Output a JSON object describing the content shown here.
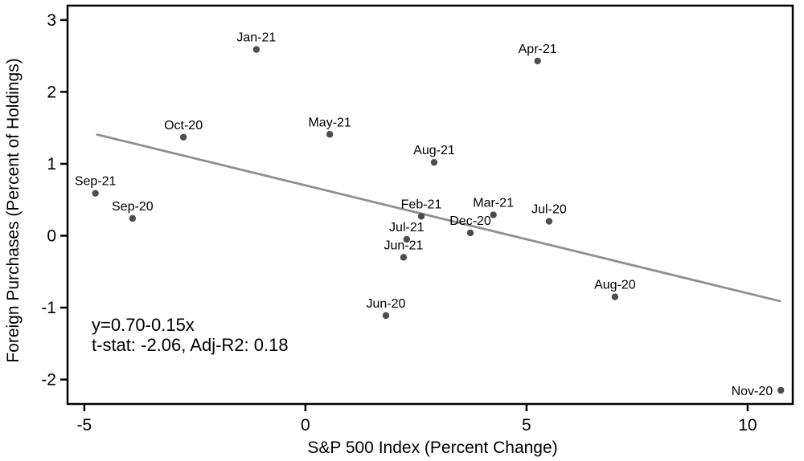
{
  "chart_data": {
    "type": "scatter",
    "title": "",
    "xlabel": "S&P 500 Index (Percent Change)",
    "ylabel": "Foreign Purchases (Percent of Holdings)",
    "xlim": [
      -5.38,
      11.02
    ],
    "ylim": [
      -2.34,
      3.2
    ],
    "x_ticks": [
      -5,
      0,
      5,
      10
    ],
    "y_ticks": [
      -2,
      -1,
      0,
      1,
      2,
      3
    ],
    "grid": false,
    "legend": "none",
    "points": [
      {
        "label": "Sep-21",
        "x": -4.75,
        "y": 0.59,
        "label_pos": "above"
      },
      {
        "label": "Sep-20",
        "x": -3.91,
        "y": 0.24,
        "label_pos": "above"
      },
      {
        "label": "Oct-20",
        "x": -2.76,
        "y": 1.37,
        "label_pos": "above"
      },
      {
        "label": "Jan-21",
        "x": -1.11,
        "y": 2.59,
        "label_pos": "above"
      },
      {
        "label": "May-21",
        "x": 0.55,
        "y": 1.41,
        "label_pos": "above"
      },
      {
        "label": "Jun-20",
        "x": 1.82,
        "y": -1.11,
        "label_pos": "above"
      },
      {
        "label": "Jun-21",
        "x": 2.22,
        "y": -0.3,
        "label_pos": "above"
      },
      {
        "label": "Jul-21",
        "x": 2.29,
        "y": -0.05,
        "label_pos": "above"
      },
      {
        "label": "Feb-21",
        "x": 2.62,
        "y": 0.27,
        "label_pos": "above"
      },
      {
        "label": "Aug-21",
        "x": 2.91,
        "y": 1.02,
        "label_pos": "above"
      },
      {
        "label": "Dec-20",
        "x": 3.73,
        "y": 0.04,
        "label_pos": "above"
      },
      {
        "label": "Mar-21",
        "x": 4.25,
        "y": 0.29,
        "label_pos": "above"
      },
      {
        "label": "Apr-21",
        "x": 5.25,
        "y": 2.43,
        "label_pos": "above"
      },
      {
        "label": "Jul-20",
        "x": 5.51,
        "y": 0.2,
        "label_pos": "above"
      },
      {
        "label": "Aug-20",
        "x": 7.0,
        "y": -0.85,
        "label_pos": "above"
      },
      {
        "label": "Nov-20",
        "x": 10.75,
        "y": -2.15,
        "label_pos": "left"
      }
    ],
    "trendline": {
      "intercept": 0.7,
      "slope": -0.15,
      "x_start": -4.73,
      "x_end": 10.75
    },
    "annotation": {
      "line1": "y=0.70-0.15x",
      "line2": "t-stat: -2.06, Adj-R2: 0.18"
    },
    "colors": {
      "point": "#4d4d4d",
      "trendline": "#8f8f8f",
      "frame": "#000000",
      "text": "#000000",
      "background": "#ffffff"
    }
  }
}
